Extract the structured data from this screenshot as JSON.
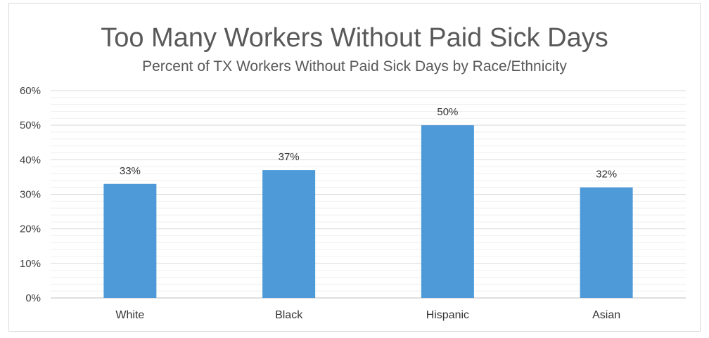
{
  "chart_data": {
    "type": "bar",
    "title": "Too Many Workers Without Paid Sick Days",
    "subtitle": "Percent of TX Workers Without Paid Sick Days by Race/Ethnicity",
    "categories": [
      "White",
      "Black",
      "Hispanic",
      "Asian"
    ],
    "values": [
      33,
      37,
      50,
      32
    ],
    "data_labels": [
      "33%",
      "37%",
      "50%",
      "32%"
    ],
    "ylim": [
      0,
      60
    ],
    "yticks": [
      0,
      10,
      20,
      30,
      40,
      50,
      60
    ],
    "ytick_labels": [
      "0%",
      "10%",
      "20%",
      "30%",
      "40%",
      "50%",
      "60%"
    ],
    "xlabel": "",
    "ylabel": "",
    "grid": true,
    "minor_grid": true,
    "legend": "none",
    "bar_color": "#4e9ad9"
  }
}
